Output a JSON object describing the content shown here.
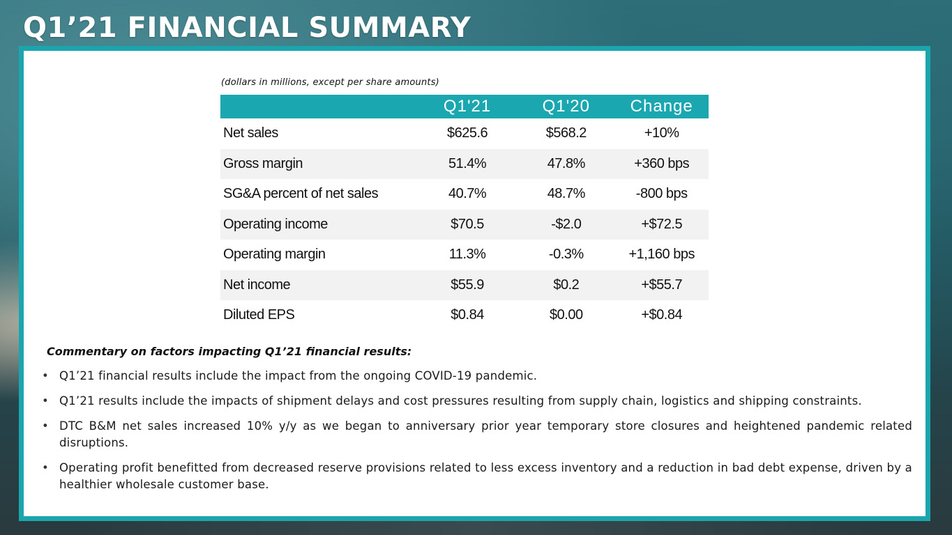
{
  "title": "Q1’21 FINANCIAL SUMMARY",
  "units_note": "(dollars in millions, except per share amounts)",
  "colors": {
    "accent": "#1aa7b0",
    "row_alt": "#f2f2f2",
    "text": "#111111"
  },
  "table": {
    "headers": [
      "",
      "Q1'21",
      "Q1'20",
      "Change"
    ],
    "rows": [
      {
        "label": "Net sales",
        "q1_21": "$625.6",
        "q1_20": "$568.2",
        "change": "+10%"
      },
      {
        "label": "Gross margin",
        "q1_21": "51.4%",
        "q1_20": "47.8%",
        "change": "+360 bps"
      },
      {
        "label": "SG&A percent of net sales",
        "q1_21": "40.7%",
        "q1_20": "48.7%",
        "change": "-800 bps"
      },
      {
        "label": "Operating income",
        "q1_21": "$70.5",
        "q1_20": "-$2.0",
        "change": "+$72.5"
      },
      {
        "label": "Operating margin",
        "q1_21": "11.3%",
        "q1_20": "-0.3%",
        "change": "+1,160 bps"
      },
      {
        "label": "Net income",
        "q1_21": "$55.9",
        "q1_20": "$0.2",
        "change": "+$55.7"
      },
      {
        "label": "Diluted EPS",
        "q1_21": "$0.84",
        "q1_20": "$0.00",
        "change": "+$0.84"
      }
    ]
  },
  "commentary": {
    "heading": "Commentary on factors impacting Q1’21 financial results:",
    "bullet_glyph": "•",
    "items": [
      "Q1’21 financial results include the impact from the ongoing COVID-19 pandemic.",
      "Q1’21 results include the impacts of shipment delays and cost pressures resulting from supply chain, logistics and shipping constraints.",
      "DTC B&M net sales increased 10% y/y as we began to anniversary prior year temporary store closures and heightened pandemic related disruptions.",
      "Operating profit benefitted from decreased reserve provisions related to less excess inventory and a reduction in bad debt expense, driven by a healthier wholesale customer base."
    ]
  }
}
